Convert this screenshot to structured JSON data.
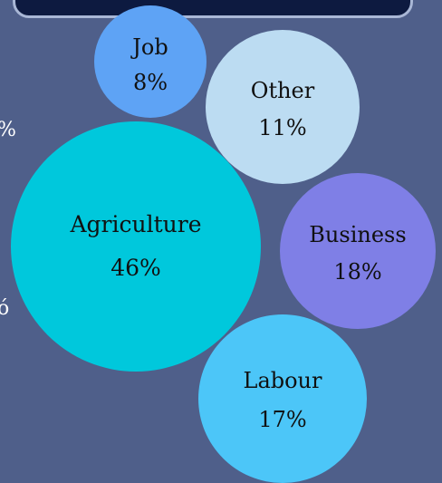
{
  "chart_data": {
    "type": "bubble",
    "title": "",
    "series": [
      {
        "name": "Agriculture",
        "label": "Agriculture",
        "value_text": "46%",
        "value": 46,
        "color": "#00c8dc"
      },
      {
        "name": "Business",
        "label": "Business",
        "value_text": "18%",
        "value": 18,
        "color": "#7f7fe6"
      },
      {
        "name": "Labour",
        "label": "Labour",
        "value_text": "17%",
        "value": 17,
        "color": "#4cc6f8"
      },
      {
        "name": "Other",
        "label": "Other",
        "value_text": "11%",
        "value": 11,
        "color": "#bcdcf2"
      },
      {
        "name": "Job",
        "label": "Job",
        "value_text": "8%",
        "value": 8,
        "color": "#5ea3f5"
      }
    ]
  },
  "partial_left_text": [
    "%",
    "ó"
  ]
}
